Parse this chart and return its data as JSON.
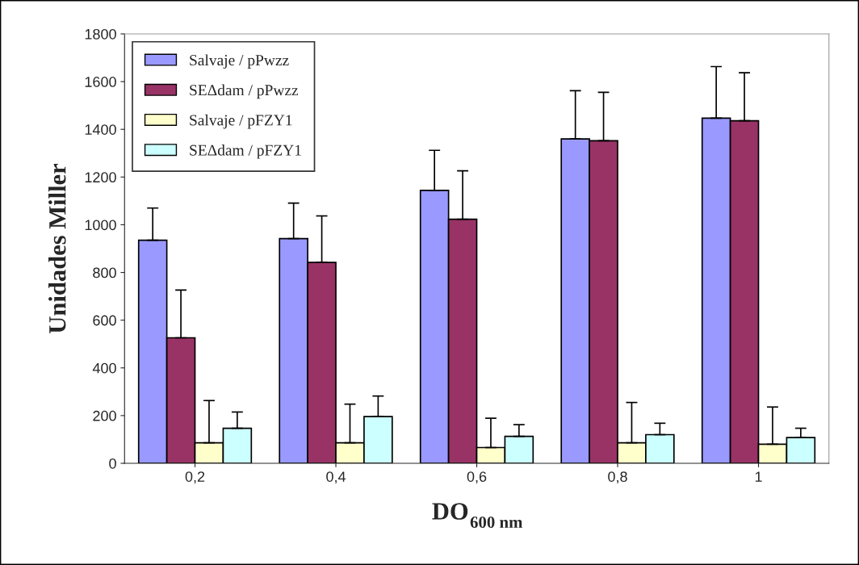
{
  "chart_data": {
    "type": "bar",
    "xlabel": "DO$_{600 nm}$",
    "ylabel": "Unidades Miller",
    "categories": [
      "0,2",
      "0,4",
      "0,6",
      "0,8",
      "1"
    ],
    "series": [
      {
        "name": "Salvaje / pPwzz",
        "color": "#9999ff",
        "values": [
          935,
          942,
          1144,
          1360,
          1447
        ],
        "errors": [
          [
            935,
            1070
          ],
          [
            942,
            1091
          ],
          [
            1144,
            1312
          ],
          [
            1360,
            1562
          ],
          [
            1447,
            1663
          ]
        ]
      },
      {
        "name": "SEΔdam / pPwzz",
        "color": "#993366",
        "values": [
          526,
          842,
          1023,
          1352,
          1436
        ],
        "errors": [
          [
            526,
            726
          ],
          [
            842,
            1037
          ],
          [
            1023,
            1226
          ],
          [
            1352,
            1555
          ],
          [
            1436,
            1637
          ]
        ]
      },
      {
        "name": "Salvaje / pFZY1",
        "color": "#ffffcc",
        "values": [
          86,
          86,
          66,
          86,
          80
        ],
        "errors": [
          [
            86,
            263
          ],
          [
            86,
            248
          ],
          [
            66,
            189
          ],
          [
            86,
            255
          ],
          [
            80,
            236
          ]
        ]
      },
      {
        "name": "SEΔdam / pFZY1",
        "color": "#ccffff",
        "values": [
          147,
          196,
          113,
          120,
          108
        ],
        "errors": [
          [
            147,
            215
          ],
          [
            196,
            282
          ],
          [
            113,
            162
          ],
          [
            120,
            168
          ],
          [
            108,
            147
          ]
        ]
      }
    ],
    "ylim": [
      0,
      1800
    ],
    "yticks": [
      0,
      200,
      400,
      600,
      800,
      1000,
      1200,
      1400,
      1600,
      1800
    ],
    "grid": false,
    "legend": "top left"
  }
}
